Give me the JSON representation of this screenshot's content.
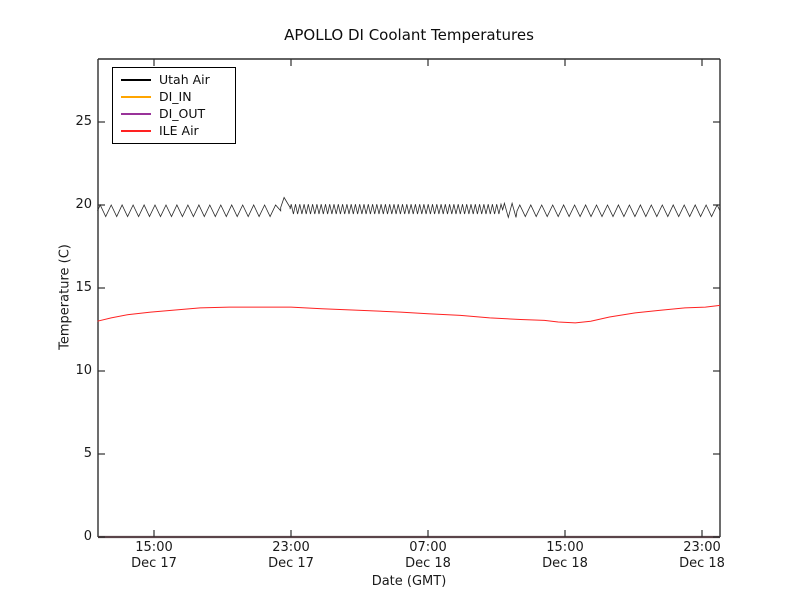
{
  "chart_data": {
    "type": "line",
    "title": "APOLLO DI Coolant Temperatures",
    "xlabel": "Date (GMT)",
    "ylabel": "Temperature (C)",
    "ylim": [
      0,
      28.8
    ],
    "yticks": [
      "0",
      "5",
      "10",
      "15",
      "20",
      "25"
    ],
    "ytick_values": [
      0,
      5,
      10,
      15,
      20,
      25
    ],
    "x_hours_range": [
      11.7,
      48.05
    ],
    "xticks": [
      {
        "t": 15,
        "time": "15:00",
        "date": "Dec 17"
      },
      {
        "t": 23,
        "time": "23:00",
        "date": "Dec 17"
      },
      {
        "t": 31,
        "time": "07:00",
        "date": "Dec 18"
      },
      {
        "t": 39,
        "time": "15:00",
        "date": "Dec 18"
      },
      {
        "t": 47,
        "time": "23:00",
        "date": "Dec 18"
      }
    ],
    "grid": false,
    "legend_position": "upper left",
    "series": [
      {
        "name": "Utah Air",
        "color": "#000000",
        "render": "oscillation",
        "oscillation_segments": [
          {
            "t_start": 11.7,
            "t_end": 22.4,
            "period_hours": 0.64,
            "min": 19.3,
            "max": 20.0
          },
          {
            "t_start": 22.4,
            "t_end": 22.95,
            "period_hours": 0.8,
            "min": 19.25,
            "max": 20.45
          },
          {
            "t_start": 22.95,
            "t_end": 35.35,
            "period_hours": 0.25,
            "min": 19.45,
            "max": 20.05
          },
          {
            "t_start": 35.35,
            "t_end": 36.2,
            "period_hours": 0.45,
            "min": 19.25,
            "max": 20.1
          },
          {
            "t_start": 36.2,
            "t_end": 48.05,
            "period_hours": 0.64,
            "min": 19.3,
            "max": 20.0
          }
        ]
      },
      {
        "name": "DI_IN",
        "color": "#ffa500",
        "render": "points",
        "points": []
      },
      {
        "name": "DI_OUT",
        "color": "#993399",
        "render": "points",
        "points": []
      },
      {
        "name": "ILE Air",
        "color": "#ff2222",
        "render": "points",
        "points": [
          [
            11.7,
            13.0
          ],
          [
            12.5,
            13.2
          ],
          [
            13.5,
            13.4
          ],
          [
            14.8,
            13.55
          ],
          [
            16.5,
            13.7
          ],
          [
            17.7,
            13.8
          ],
          [
            19.4,
            13.85
          ],
          [
            21.2,
            13.85
          ],
          [
            23.0,
            13.85
          ],
          [
            24.8,
            13.75
          ],
          [
            27.1,
            13.65
          ],
          [
            29.4,
            13.55
          ],
          [
            31.0,
            13.45
          ],
          [
            32.9,
            13.35
          ],
          [
            34.6,
            13.2
          ],
          [
            36.4,
            13.1
          ],
          [
            37.8,
            13.05
          ],
          [
            38.6,
            12.95
          ],
          [
            39.6,
            12.9
          ],
          [
            40.5,
            13.0
          ],
          [
            41.6,
            13.25
          ],
          [
            43.1,
            13.5
          ],
          [
            44.5,
            13.65
          ],
          [
            46.0,
            13.8
          ],
          [
            47.2,
            13.85
          ],
          [
            48.05,
            13.95
          ]
        ]
      }
    ]
  }
}
